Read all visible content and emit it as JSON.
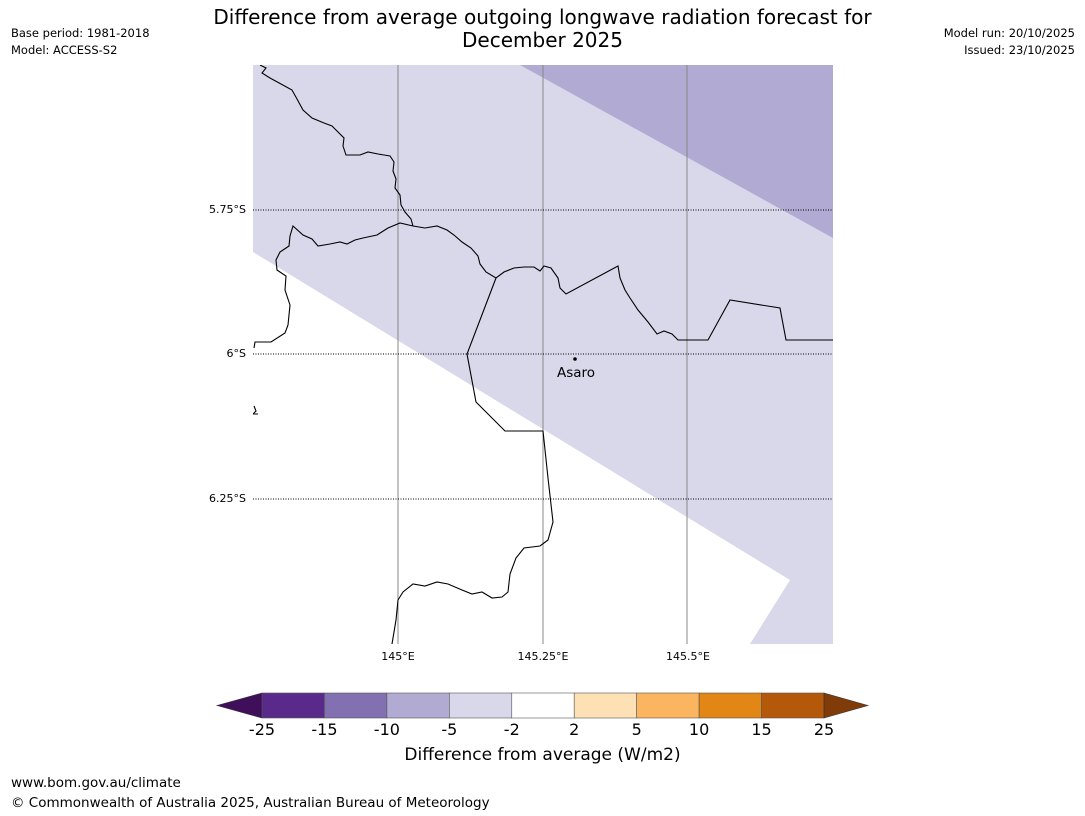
{
  "title_line1": "Difference from average outgoing longwave radiation forecast for",
  "title_line2": "December 2025",
  "meta_left": {
    "base_period": "Base period: 1981-2018",
    "model": "Model: ACCESS-S2"
  },
  "meta_right": {
    "model_run": "Model run: 20/10/2025",
    "issued": "Issued: 23/10/2025"
  },
  "map": {
    "lat_labels": [
      "5.75°S",
      "6°S",
      "6.25°S"
    ],
    "lon_labels": [
      "145°E",
      "145.25°E",
      "145.5°E"
    ],
    "place": {
      "name": "Asaro"
    }
  },
  "colorbar": {
    "ticks": [
      "-25",
      "-15",
      "-10",
      "-5",
      "-2",
      "2",
      "5",
      "10",
      "15",
      "25"
    ],
    "colors": [
      "#3f0f5c",
      "#5a2a8a",
      "#8270b0",
      "#b1aad2",
      "#d8d8ea",
      "#ffffff",
      "#fde0b4",
      "#fbb45f",
      "#e28616",
      "#b4580a",
      "#7f3b08"
    ],
    "title": "Difference from average (W/m2)"
  },
  "footer": {
    "url": "www.bom.gov.au/climate",
    "copyright": "© Commonwealth of Australia 2025, Australian Bureau of Meteorology"
  }
}
